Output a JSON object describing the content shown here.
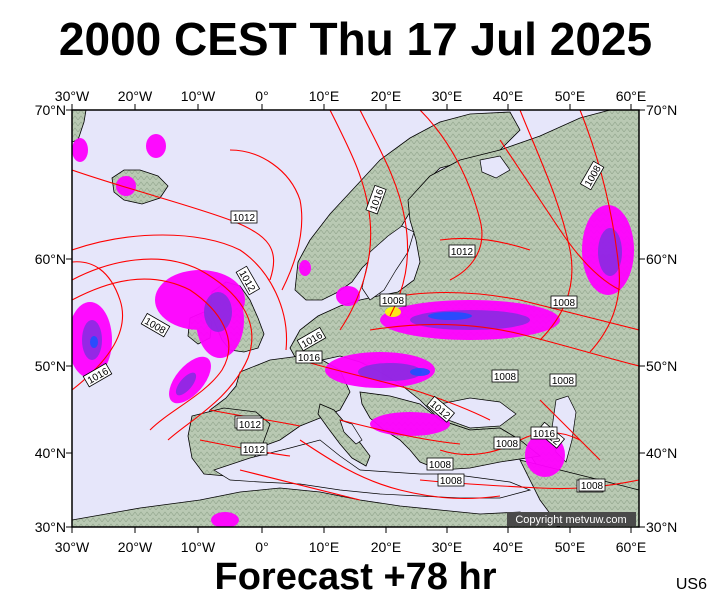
{
  "title": "2000 CEST Thu 17 Jul 2025",
  "footer": "Forecast +78 hr",
  "model_code": "US6",
  "copyright": "Copyright metvuw.com",
  "colors": {
    "ocean": "#e6e6fa",
    "land": "#b9c9b3",
    "isobar": "#ff0000",
    "coast": "#000000",
    "precip_light": "#ff00ff",
    "precip_mid": "#8a2be2",
    "precip_heavy": "#1e50ff"
  },
  "lon_labels": [
    "30°W",
    "20°W",
    "10°W",
    "0°",
    "10°E",
    "20°E",
    "30°E",
    "40°E",
    "50°E",
    "60°E"
  ],
  "lat_labels": [
    "70°N",
    "60°N",
    "50°N",
    "40°N",
    "30°N"
  ],
  "isobar_labels": [
    "1012",
    "1016",
    "1008",
    "1012",
    "1012",
    "1008",
    "1008",
    "1016",
    "1016",
    "1008",
    "1016",
    "1008",
    "1008",
    "1012",
    "1012",
    "1012",
    "1008",
    "1008",
    "1012",
    "1016",
    "1012",
    "1008",
    "1008",
    "1012"
  ]
}
